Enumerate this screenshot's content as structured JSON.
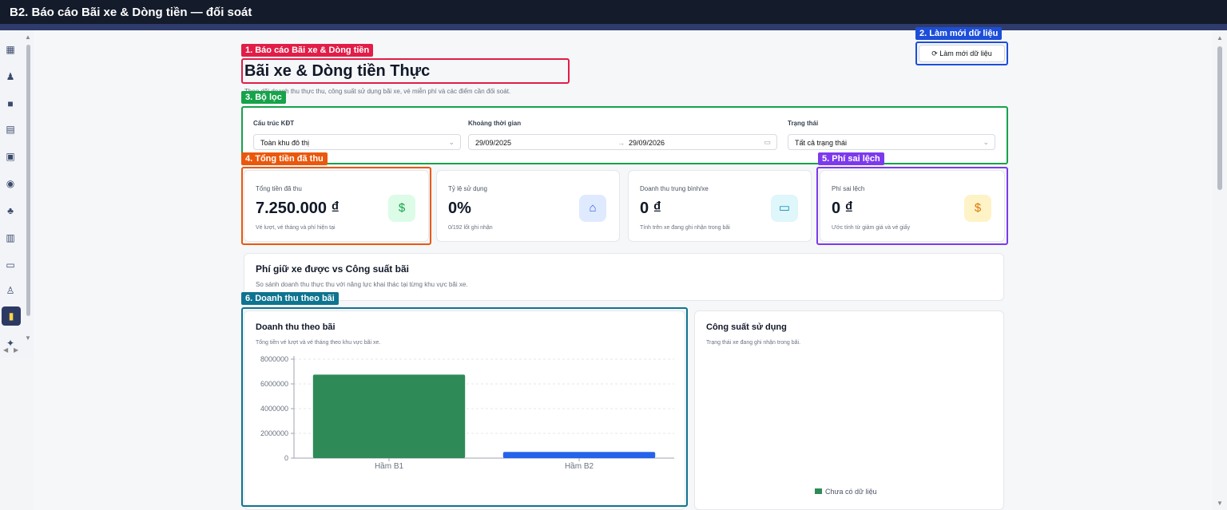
{
  "window": {
    "title": "B2. Báo cáo Bãi xe & Dòng tiền — đối soát"
  },
  "annotations": {
    "a1": "1. Báo cáo Bãi xe & Dòng tiền",
    "a2": "2. Làm mới dữ liệu",
    "a3": "3. Bộ lọc",
    "a4": "4. Tổng tiền đã thu",
    "a5": "5. Phí sai lệch",
    "a6": "6. Doanh thu theo bãi"
  },
  "header": {
    "title": "Bãi xe & Dòng tiền Thực",
    "subtitle": "Theo dõi doanh thu thực thu, công suất sử dụng bãi xe, vé miễn phí và các điểm cần đối soát.",
    "refresh_label": "Làm mới dữ liệu"
  },
  "filters": {
    "kdt_label": "Cấu trúc KĐT",
    "kdt_value": "Toàn khu đô thị",
    "period_label": "Khoảng thời gian",
    "date_from": "29/09/2025",
    "date_to": "29/09/2026",
    "status_label": "Trạng thái",
    "status_value": "Tất cả trạng thái"
  },
  "cards": [
    {
      "label": "Tổng tiền đã thu",
      "value": "7.250.000 ₫",
      "note": "Vé lượt, vé tháng và phí hiện tại",
      "icon": "dollar-icon",
      "color": "#16a34a"
    },
    {
      "label": "Tỷ lệ sử dụng",
      "value": "0%",
      "note": "0/192 lốt ghi nhận",
      "icon": "bank-icon",
      "color": "#2563eb"
    },
    {
      "label": "Doanh thu trung bình/xe",
      "value": "0 ₫",
      "note": "Tính trên xe đang ghi nhận trong bãi",
      "icon": "car-icon",
      "color": "#0891b2"
    },
    {
      "label": "Phí sai lệch",
      "value": "0 ₫",
      "note": "Ước tính từ giảm giá và vé giấy",
      "icon": "coin-icon",
      "color": "#d97706"
    }
  ],
  "section": {
    "title": "Phí giữ xe được vs Công suất bãi",
    "subtitle": "So sánh doanh thu thực thu với năng lực khai thác tại từng khu vực bãi xe."
  },
  "revenue_panel": {
    "title": "Doanh thu theo bãi",
    "subtitle": "Tổng tiền vé lượt và vé tháng theo khu vực bãi xe."
  },
  "capacity_panel": {
    "title": "Công suất sử dụng",
    "subtitle": "Trạng thái xe đang ghi nhận trong bãi.",
    "legend": "Chưa có dữ liệu"
  },
  "chart_data": {
    "type": "bar",
    "categories": [
      "Hầm B1",
      "Hầm B2"
    ],
    "values": [
      6750000,
      500000
    ],
    "bar_colors": [
      "#2e8b57",
      "#2563eb"
    ],
    "ylim": [
      0,
      8000000
    ],
    "yticks": [
      0,
      2000000,
      4000000,
      6000000,
      8000000
    ],
    "title": "",
    "xlabel": "",
    "ylabel": ""
  },
  "colors": {
    "red": "#e11d48",
    "blue": "#1d4ed8",
    "green": "#16a34a",
    "orange": "#ea580c",
    "purple": "#7c3aed",
    "teal": "#0e7490"
  }
}
